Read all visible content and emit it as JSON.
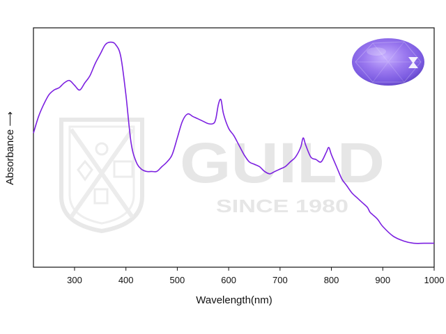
{
  "chart_data": {
    "type": "line",
    "title": "",
    "xlabel": "Wavelength(nm)",
    "ylabel": "Absorbance ⟶",
    "xlim": [
      220,
      1000
    ],
    "ylim": [
      0,
      100
    ],
    "x_ticks": [
      300,
      400,
      500,
      600,
      700,
      800,
      900,
      1000
    ],
    "y_ticks": [],
    "grid": false,
    "legend": "none",
    "series": [
      {
        "color": "#7b1fe0",
        "x": [
          220,
          230,
          240,
          250,
          260,
          270,
          280,
          290,
          300,
          310,
          320,
          330,
          340,
          350,
          360,
          370,
          380,
          390,
          400,
          410,
          420,
          430,
          440,
          450,
          460,
          470,
          480,
          490,
          500,
          510,
          520,
          530,
          540,
          550,
          560,
          570,
          575,
          580,
          585,
          590,
          600,
          610,
          620,
          630,
          640,
          650,
          660,
          670,
          680,
          690,
          700,
          710,
          720,
          730,
          740,
          745,
          750,
          760,
          770,
          780,
          790,
          795,
          800,
          810,
          820,
          830,
          840,
          850,
          860,
          870,
          875,
          880,
          890,
          900,
          920,
          940,
          960,
          980,
          1000
        ],
        "values": [
          56,
          63,
          68,
          72,
          74,
          75,
          77,
          78,
          76,
          74,
          77,
          80,
          85,
          89,
          93,
          94,
          93,
          88,
          72,
          52,
          44,
          41,
          40,
          40,
          40,
          42,
          44,
          47,
          54,
          61,
          64,
          63,
          62,
          61,
          60,
          60,
          62,
          68,
          70,
          64,
          58,
          55,
          51,
          47,
          44,
          43,
          42,
          40,
          39,
          40,
          41,
          42,
          44,
          46,
          50,
          54,
          51,
          46,
          45,
          44,
          48,
          50,
          47,
          42,
          37,
          34,
          31,
          29,
          27,
          25,
          23,
          22,
          20,
          17,
          13,
          11,
          10,
          10,
          10
        ]
      }
    ],
    "annotations": []
  },
  "watermark": {
    "brand": "GUILD",
    "since": "SINCE 1980",
    "color": "#e6e6e6"
  },
  "gem_image": {
    "icon": "oval-faceted-purple-gem-icon",
    "colors": [
      "#c9b2ff",
      "#9a78ef",
      "#7a5ae0",
      "#5b3fbd"
    ]
  }
}
